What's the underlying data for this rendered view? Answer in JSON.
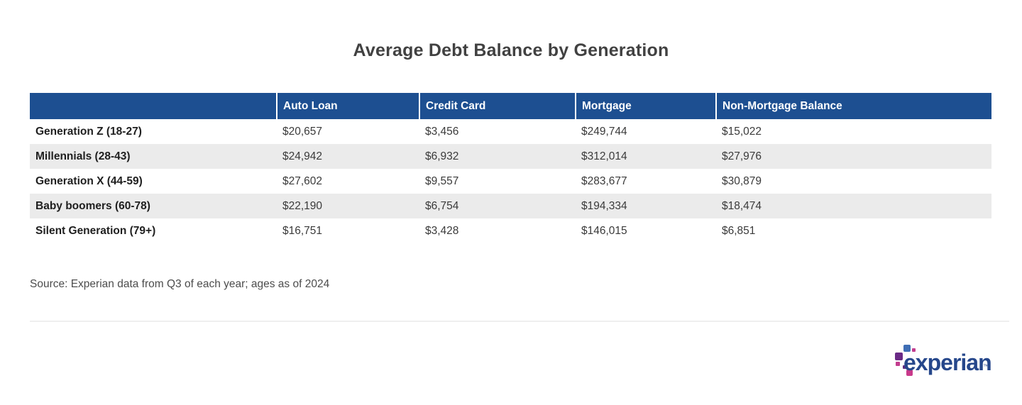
{
  "page": {
    "title": "Average Debt Balance by Generation",
    "source_note": "Source: Experian data from Q3 of each year; ages as of 2024"
  },
  "colors": {
    "header_blue": "#1d4f91",
    "row_alt_gray": "#ebebeb",
    "title_gray": "#414141",
    "logo_dark_blue": "#26478b",
    "logo_light_blue": "#3f6eb5",
    "logo_purple": "#6a2a86",
    "logo_magenta": "#c33d8e"
  },
  "table": {
    "columns": [
      "",
      "Auto Loan",
      "Credit Card",
      "Mortgage",
      "Non-Mortgage Balance"
    ],
    "rows": [
      {
        "label": "Generation Z (18-27)",
        "values": [
          "$20,657",
          "$3,456",
          "$249,744",
          "$15,022"
        ]
      },
      {
        "label": "Millennials (28-43)",
        "values": [
          "$24,942",
          "$6,932",
          "$312,014",
          "$27,976"
        ]
      },
      {
        "label": "Generation X (44-59)",
        "values": [
          "$27,602",
          "$9,557",
          "$283,677",
          "$30,879"
        ]
      },
      {
        "label": "Baby boomers (60-78)",
        "values": [
          "$22,190",
          "$6,754",
          "$194,334",
          "$18,474"
        ]
      },
      {
        "label": "Silent Generation (79+)",
        "values": [
          "$16,751",
          "$3,428",
          "$146,015",
          "$6,851"
        ]
      }
    ]
  },
  "chart_data": {
    "type": "table",
    "title": "Average Debt Balance by Generation",
    "categories": [
      "Generation Z (18-27)",
      "Millennials (28-43)",
      "Generation X (44-59)",
      "Baby boomers (60-78)",
      "Silent Generation (79+)"
    ],
    "series": [
      {
        "name": "Auto Loan",
        "values": [
          20657,
          24942,
          27602,
          22190,
          16751
        ]
      },
      {
        "name": "Credit Card",
        "values": [
          3456,
          6932,
          9557,
          6754,
          3428
        ]
      },
      {
        "name": "Mortgage",
        "values": [
          249744,
          312014,
          283677,
          194334,
          146015
        ]
      },
      {
        "name": "Non-Mortgage Balance",
        "values": [
          15022,
          27976,
          30879,
          18474,
          6851
        ]
      }
    ],
    "source": "Source: Experian data from Q3 of each year; ages as of 2024"
  },
  "logo": {
    "text": "experian",
    "trademark": "™"
  }
}
